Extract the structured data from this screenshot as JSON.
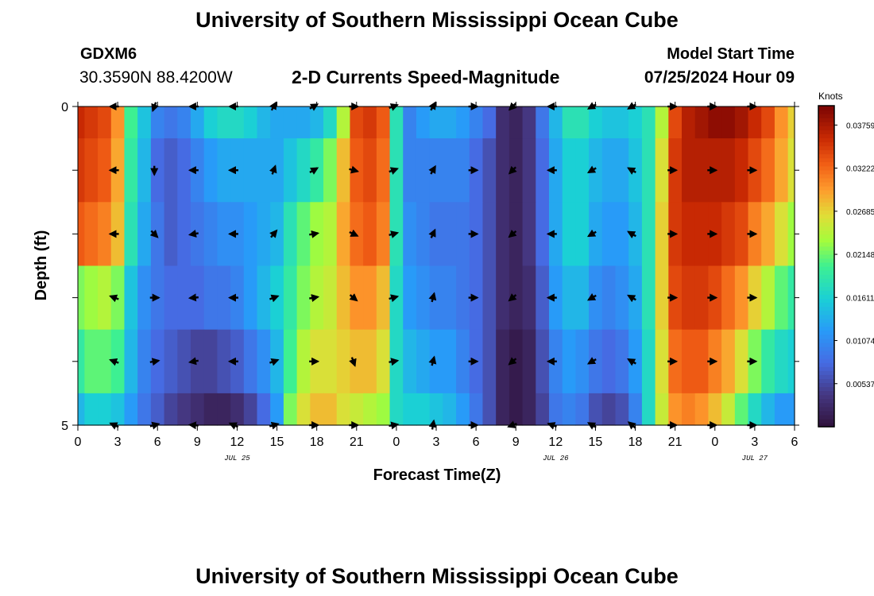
{
  "page": {
    "title": "University of Southern Mississippi Ocean Cube",
    "bottom_title": "University of Southern Mississippi Ocean Cube",
    "station_id": "GDXM6",
    "location": "30.3590N  88.4200W",
    "subtitle": "2-D Currents Speed-Magnitude",
    "model_start_label": "Model Start Time",
    "model_start_value": "07/25/2024 Hour 09"
  },
  "chart_data": {
    "type": "heatmap",
    "title": "2-D Currents Speed-Magnitude",
    "xlabel": "Forecast Time(Z)",
    "ylabel": "Depth (ft)",
    "x_tick_labels": [
      "0",
      "3",
      "6",
      "9",
      "12",
      "15",
      "18",
      "21",
      "0",
      "3",
      "6",
      "9",
      "12",
      "15",
      "18",
      "21",
      "0",
      "3",
      "6"
    ],
    "x_range_hours": [
      0,
      54
    ],
    "x_date_labels": [
      {
        "hour": 12,
        "label": "JUL 25"
      },
      {
        "hour": 36,
        "label": "JUL 26"
      },
      {
        "hour": 51,
        "label": "JUL 27"
      }
    ],
    "y_range": [
      0,
      5
    ],
    "y_tick_labels": [
      "0",
      "5"
    ],
    "y_minor_ticks": 4,
    "colorbar": {
      "unit": "Knots",
      "min": 0.0,
      "max": 0.04,
      "tick_values": [
        0.00537,
        0.01074,
        0.01611,
        0.02148,
        0.02685,
        0.03222,
        0.03759
      ],
      "tick_labels": [
        "0.00537",
        "0.01074",
        "0.01611",
        "0.02148",
        "0.02685",
        "0.03222",
        "0.03759"
      ]
    },
    "depth_levels": [
      0,
      1,
      2,
      3,
      4,
      5
    ],
    "speed_knots": [
      [
        0.036,
        0.035,
        0.034,
        0.03,
        0.02,
        0.015,
        0.01,
        0.009,
        0.01,
        0.013,
        0.016,
        0.017,
        0.017,
        0.016,
        0.014,
        0.013,
        0.013,
        0.013,
        0.014,
        0.017,
        0.024,
        0.034,
        0.035,
        0.033,
        0.018,
        0.01,
        0.012,
        0.013,
        0.013,
        0.012,
        0.01,
        0.008,
        0.003,
        0.002,
        0.004,
        0.009,
        0.014,
        0.018,
        0.018,
        0.016,
        0.015,
        0.015,
        0.016,
        0.018,
        0.024,
        0.034,
        0.037,
        0.038,
        0.039,
        0.039,
        0.038,
        0.036,
        0.034,
        0.03,
        0.027
      ],
      [
        0.035,
        0.034,
        0.033,
        0.029,
        0.019,
        0.014,
        0.008,
        0.007,
        0.008,
        0.01,
        0.012,
        0.013,
        0.013,
        0.013,
        0.013,
        0.013,
        0.015,
        0.017,
        0.019,
        0.022,
        0.028,
        0.033,
        0.034,
        0.032,
        0.018,
        0.01,
        0.01,
        0.01,
        0.01,
        0.01,
        0.008,
        0.006,
        0.003,
        0.002,
        0.004,
        0.008,
        0.013,
        0.016,
        0.016,
        0.014,
        0.013,
        0.013,
        0.015,
        0.018,
        0.026,
        0.035,
        0.037,
        0.037,
        0.037,
        0.037,
        0.036,
        0.034,
        0.032,
        0.029,
        0.026
      ],
      [
        0.033,
        0.032,
        0.031,
        0.028,
        0.018,
        0.013,
        0.009,
        0.007,
        0.008,
        0.009,
        0.01,
        0.011,
        0.011,
        0.012,
        0.013,
        0.014,
        0.018,
        0.021,
        0.023,
        0.024,
        0.029,
        0.032,
        0.033,
        0.031,
        0.018,
        0.011,
        0.01,
        0.009,
        0.009,
        0.009,
        0.008,
        0.006,
        0.003,
        0.002,
        0.004,
        0.008,
        0.013,
        0.016,
        0.016,
        0.013,
        0.012,
        0.012,
        0.014,
        0.018,
        0.027,
        0.035,
        0.036,
        0.036,
        0.036,
        0.035,
        0.034,
        0.031,
        0.029,
        0.026,
        0.023
      ],
      [
        0.022,
        0.023,
        0.024,
        0.022,
        0.015,
        0.011,
        0.009,
        0.008,
        0.008,
        0.008,
        0.009,
        0.009,
        0.01,
        0.012,
        0.014,
        0.016,
        0.019,
        0.022,
        0.024,
        0.025,
        0.028,
        0.03,
        0.03,
        0.028,
        0.017,
        0.012,
        0.011,
        0.01,
        0.01,
        0.009,
        0.008,
        0.006,
        0.003,
        0.002,
        0.003,
        0.007,
        0.012,
        0.014,
        0.014,
        0.011,
        0.01,
        0.011,
        0.013,
        0.018,
        0.027,
        0.034,
        0.035,
        0.035,
        0.034,
        0.032,
        0.03,
        0.027,
        0.024,
        0.021,
        0.019
      ],
      [
        0.019,
        0.021,
        0.021,
        0.02,
        0.014,
        0.01,
        0.008,
        0.007,
        0.006,
        0.005,
        0.005,
        0.006,
        0.007,
        0.009,
        0.011,
        0.014,
        0.02,
        0.024,
        0.026,
        0.026,
        0.027,
        0.028,
        0.028,
        0.026,
        0.017,
        0.014,
        0.013,
        0.012,
        0.012,
        0.01,
        0.008,
        0.006,
        0.002,
        0.001,
        0.002,
        0.006,
        0.01,
        0.012,
        0.011,
        0.009,
        0.008,
        0.009,
        0.012,
        0.017,
        0.026,
        0.032,
        0.033,
        0.033,
        0.031,
        0.029,
        0.026,
        0.022,
        0.019,
        0.017,
        0.016
      ],
      [
        0.014,
        0.016,
        0.016,
        0.015,
        0.012,
        0.009,
        0.007,
        0.005,
        0.004,
        0.003,
        0.002,
        0.002,
        0.003,
        0.005,
        0.008,
        0.012,
        0.022,
        0.026,
        0.028,
        0.028,
        0.026,
        0.025,
        0.024,
        0.023,
        0.017,
        0.016,
        0.016,
        0.015,
        0.014,
        0.012,
        0.009,
        0.006,
        0.002,
        0.001,
        0.002,
        0.005,
        0.009,
        0.01,
        0.009,
        0.006,
        0.005,
        0.006,
        0.01,
        0.017,
        0.025,
        0.03,
        0.031,
        0.03,
        0.028,
        0.025,
        0.021,
        0.017,
        0.014,
        0.012,
        0.012
      ]
    ],
    "vectors": {
      "hours": [
        3,
        6,
        9,
        12,
        15,
        18,
        21,
        24,
        27,
        30,
        33,
        36,
        39,
        42,
        45,
        48,
        51
      ],
      "depths": [
        0,
        1,
        2,
        3,
        4,
        5
      ],
      "directions_deg": [
        [
          180,
          250,
          180,
          180,
          60,
          30,
          0,
          20,
          60,
          0,
          225,
          180,
          210,
          210,
          0,
          0,
          0
        ],
        [
          180,
          270,
          180,
          180,
          70,
          30,
          345,
          20,
          60,
          0,
          225,
          180,
          210,
          150,
          0,
          0,
          0
        ],
        [
          180,
          315,
          190,
          180,
          50,
          10,
          335,
          15,
          65,
          0,
          220,
          180,
          210,
          150,
          0,
          0,
          0
        ],
        [
          160,
          0,
          185,
          180,
          20,
          10,
          320,
          15,
          75,
          0,
          220,
          180,
          210,
          150,
          0,
          0,
          0
        ],
        [
          160,
          10,
          190,
          180,
          20,
          0,
          290,
          10,
          75,
          0,
          220,
          180,
          210,
          150,
          0,
          0,
          0
        ],
        [
          155,
          15,
          175,
          155,
          15,
          0,
          0,
          10,
          80,
          0,
          200,
          160,
          150,
          140,
          0,
          0,
          0
        ]
      ]
    }
  }
}
